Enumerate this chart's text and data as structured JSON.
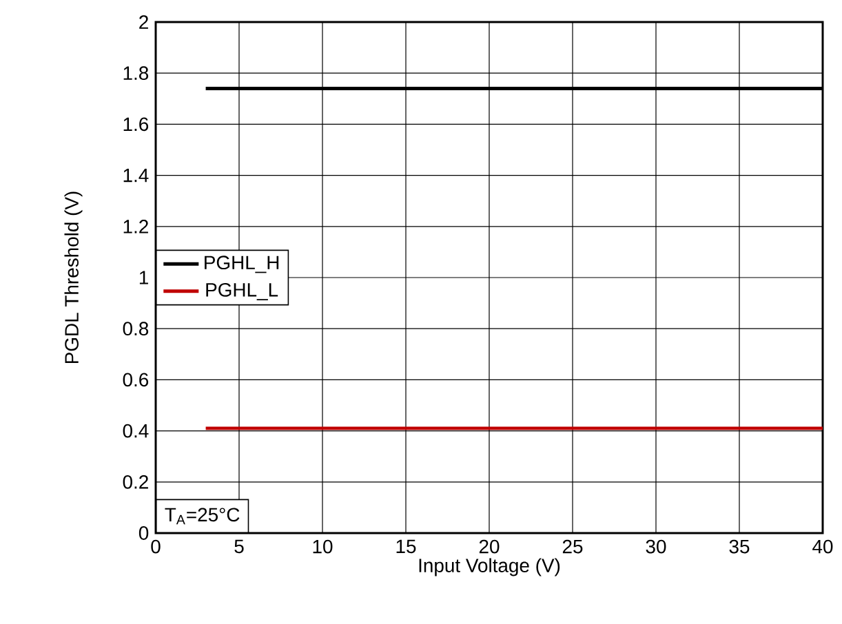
{
  "chart_data": {
    "type": "line",
    "xlabel": "Input Voltage (V)",
    "ylabel": "PGDL Threshold (V)",
    "xlim": [
      0,
      40
    ],
    "ylim": [
      0,
      2
    ],
    "xticks": [
      0,
      5,
      10,
      15,
      20,
      25,
      30,
      35,
      40
    ],
    "yticks": [
      0,
      0.2,
      0.4,
      0.6,
      0.8,
      1,
      1.2,
      1.4,
      1.6,
      1.8,
      2
    ],
    "grid": true,
    "legend": "left",
    "marker": "none",
    "line_style": "solid",
    "annotations": [
      "T$_{A}$=25°C"
    ],
    "x": [
      3,
      40
    ],
    "series": [
      {
        "name": "PGHL_H",
        "color": "#000000",
        "values": [
          1.74,
          1.74
        ]
      },
      {
        "name": "PGHL_L",
        "color": "#c00000",
        "values": [
          0.41,
          0.41
        ]
      }
    ]
  }
}
